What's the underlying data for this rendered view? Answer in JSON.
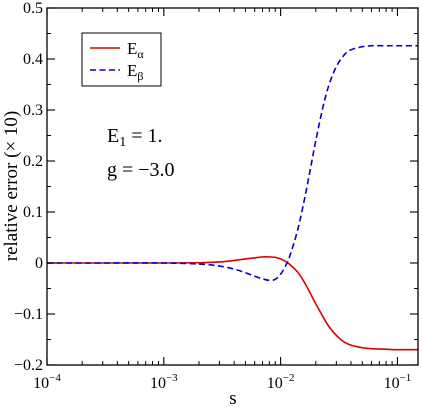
{
  "chart_data": {
    "type": "line",
    "title": "",
    "xlabel": "s",
    "ylabel": "relative error (× 10)",
    "xscale": "log",
    "xlim": [
      0.0001,
      0.15
    ],
    "ylim": [
      -0.2,
      0.5
    ],
    "grid": false,
    "legend_position": "top-left",
    "x_ticks": [
      0.0001,
      0.001,
      0.01,
      0.1
    ],
    "x_tick_labels": [
      {
        "base": "10",
        "exp": "−4"
      },
      {
        "base": "10",
        "exp": "−3"
      },
      {
        "base": "10",
        "exp": "−2"
      },
      {
        "base": "10",
        "exp": "−1"
      }
    ],
    "y_ticks": [
      -0.2,
      -0.1,
      0,
      0.1,
      0.2,
      0.3,
      0.4,
      0.5
    ],
    "y_tick_labels": [
      "−0.2",
      "−0.1",
      "0",
      "0.1",
      "0.2",
      "0.3",
      "0.4",
      "0.5"
    ],
    "series": [
      {
        "name": {
          "base": "E",
          "sub": "α"
        },
        "color": "#dd0000",
        "style": "solid",
        "points": [
          [
            0.0001,
            0.0
          ],
          [
            0.0003,
            0.0
          ],
          [
            0.001,
            0.0
          ],
          [
            0.002,
            0.0005
          ],
          [
            0.003,
            0.002
          ],
          [
            0.004,
            0.005
          ],
          [
            0.005,
            0.008
          ],
          [
            0.006,
            0.01
          ],
          [
            0.007,
            0.012
          ],
          [
            0.008,
            0.012
          ],
          [
            0.009,
            0.011
          ],
          [
            0.01,
            0.008
          ],
          [
            0.011,
            0.003
          ],
          [
            0.012,
            -0.003
          ],
          [
            0.014,
            -0.018
          ],
          [
            0.016,
            -0.038
          ],
          [
            0.018,
            -0.06
          ],
          [
            0.02,
            -0.08
          ],
          [
            0.023,
            -0.105
          ],
          [
            0.026,
            -0.125
          ],
          [
            0.03,
            -0.142
          ],
          [
            0.035,
            -0.155
          ],
          [
            0.04,
            -0.161
          ],
          [
            0.05,
            -0.166
          ],
          [
            0.06,
            -0.168
          ],
          [
            0.08,
            -0.169
          ],
          [
            0.1,
            -0.17
          ],
          [
            0.15,
            -0.17
          ]
        ]
      },
      {
        "name": {
          "base": "E",
          "sub": "β"
        },
        "color": "#0000cc",
        "style": "dashed",
        "points": [
          [
            0.0001,
            0.0
          ],
          [
            0.0003,
            0.0
          ],
          [
            0.001,
            0.0
          ],
          [
            0.002,
            -0.002
          ],
          [
            0.003,
            -0.006
          ],
          [
            0.004,
            -0.012
          ],
          [
            0.005,
            -0.019
          ],
          [
            0.006,
            -0.026
          ],
          [
            0.007,
            -0.031
          ],
          [
            0.008,
            -0.034
          ],
          [
            0.009,
            -0.032
          ],
          [
            0.01,
            -0.022
          ],
          [
            0.011,
            -0.006
          ],
          [
            0.012,
            0.014
          ],
          [
            0.014,
            0.065
          ],
          [
            0.016,
            0.125
          ],
          [
            0.018,
            0.185
          ],
          [
            0.02,
            0.24
          ],
          [
            0.023,
            0.305
          ],
          [
            0.026,
            0.35
          ],
          [
            0.03,
            0.385
          ],
          [
            0.035,
            0.408
          ],
          [
            0.04,
            0.418
          ],
          [
            0.05,
            0.424
          ],
          [
            0.06,
            0.426
          ],
          [
            0.08,
            0.426
          ],
          [
            0.1,
            0.426
          ],
          [
            0.15,
            0.426
          ]
        ]
      }
    ],
    "annotations": [
      {
        "base": "E",
        "sub": "1",
        "text": " = 1."
      },
      {
        "text": "g = −3.0"
      }
    ]
  }
}
